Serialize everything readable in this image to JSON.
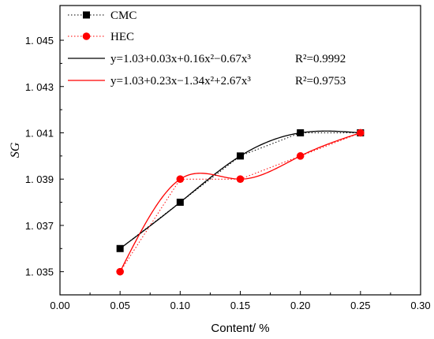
{
  "chart_data": {
    "type": "scatter",
    "title": "",
    "xlabel": "Content/ %",
    "ylabel": "SG",
    "xlim": [
      0.0,
      0.3
    ],
    "ylim": [
      1.034,
      1.0465
    ],
    "x_ticks": [
      "0.00",
      "0.05",
      "0.10",
      "0.15",
      "0.20",
      "0.25",
      "0.30"
    ],
    "x_tick_values": [
      0.0,
      0.05,
      0.1,
      0.15,
      0.2,
      0.25,
      0.3
    ],
    "y_ticks": [
      "1. 035",
      "1. 037",
      "1. 039",
      "1. 041",
      "1. 043",
      "1. 045"
    ],
    "y_tick_values": [
      1.035,
      1.037,
      1.039,
      1.041,
      1.043,
      1.045
    ],
    "grid": false,
    "legend_position": "top-left",
    "series": [
      {
        "name": "CMC",
        "color": "#000000",
        "marker": "square",
        "x": [
          0.05,
          0.1,
          0.15,
          0.2,
          0.25
        ],
        "y": [
          1.036,
          1.038,
          1.04,
          1.041,
          1.041
        ]
      },
      {
        "name": "HEC",
        "color": "#ff0000",
        "marker": "circle",
        "x": [
          0.05,
          0.1,
          0.15,
          0.2,
          0.25
        ],
        "y": [
          1.035,
          1.039,
          1.039,
          1.04,
          1.041
        ]
      }
    ],
    "fits": [
      {
        "label": "y=1.03+0.03x+0.16x²−0.67x³",
        "r2_label": "R²=0.9992",
        "color": "#000000",
        "x_range": [
          0.05,
          0.25
        ]
      },
      {
        "label": "y=1.03+0.23x−1.34x²+2.67x³",
        "r2_label": "R²=0.9753",
        "color": "#ff0000",
        "x_range": [
          0.05,
          0.25
        ]
      }
    ]
  }
}
